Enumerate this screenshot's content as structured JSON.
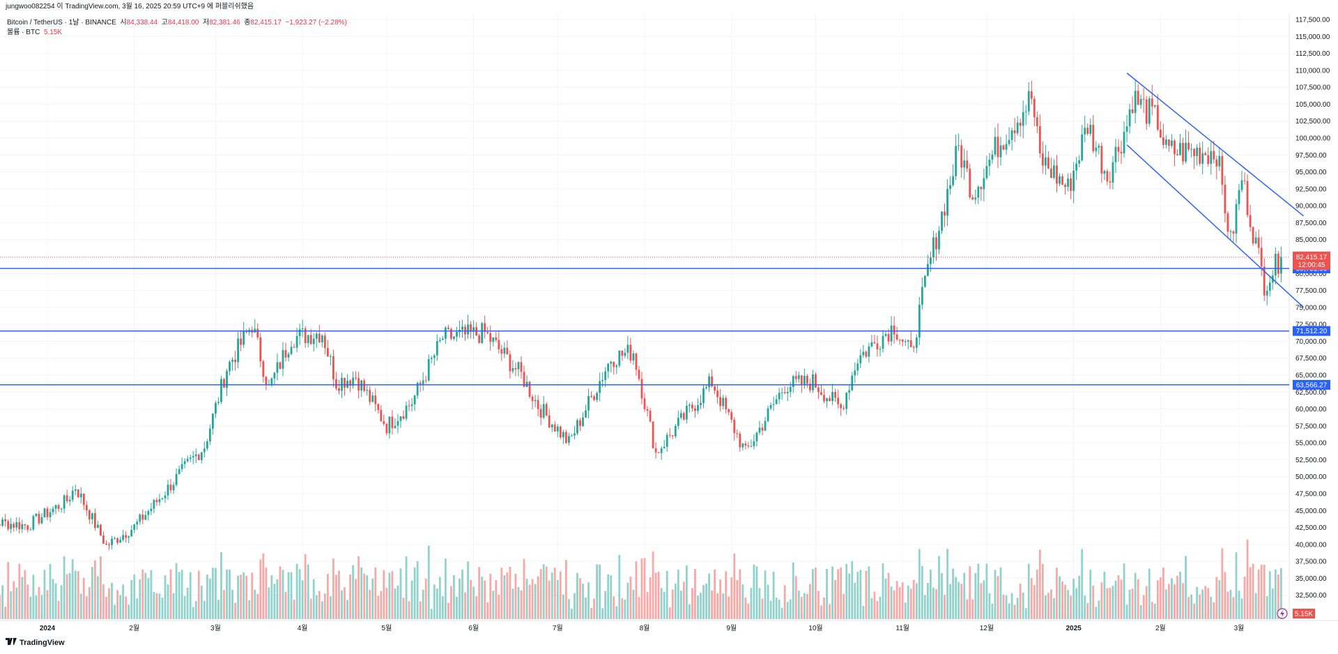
{
  "header": {
    "title": "jungwoo082254 이 TradingView.com, 3월 16, 2025 20:59 UTC+9 에 퍼블리쉬했음"
  },
  "legend": {
    "symbol": "Bitcoin / TetherUS · 1날 · BINANCE",
    "open_label": "시",
    "open_value": "84,338.44",
    "high_label": "고",
    "high_value": "84,418.00",
    "low_label": "저",
    "low_value": "82,381.46",
    "close_label": "종",
    "close_value": "82,415.17",
    "change": "−1,923.27 (−2.28%)",
    "volume_label": "볼륨 · BTC",
    "volume_value": "5.15K"
  },
  "footer": {
    "brand": "TradingView"
  },
  "colors": {
    "up": "#26a69a",
    "down": "#ef5350",
    "line": "#2962ff",
    "upvol": "#92d2cc",
    "downvol": "#f7a9a7"
  },
  "chart_data": {
    "type": "candlestick",
    "ylim": [
      30000,
      117500
    ],
    "y_ticks": [
      "117,500.00",
      "115,000.00",
      "112,500.00",
      "110,000.00",
      "107,500.00",
      "105,000.00",
      "102,500.00",
      "100,000.00",
      "97,500.00",
      "95,000.00",
      "92,500.00",
      "90,000.00",
      "87,500.00",
      "85,000.00",
      "82,500.00",
      "80,000.00",
      "77,500.00",
      "75,000.00",
      "72,500.00",
      "70,000.00",
      "67,500.00",
      "65,000.00",
      "62,500.00",
      "60,000.00",
      "57,500.00",
      "55,000.00",
      "52,500.00",
      "50,000.00",
      "47,500.00",
      "45,000.00",
      "42,500.00",
      "40,000.00",
      "37,500.00",
      "35,000.00",
      "32,500.00"
    ],
    "x_ticks": [
      {
        "label": "2024",
        "bold": true,
        "date": "2024-01-01"
      },
      {
        "label": "2월",
        "bold": false,
        "date": "2024-02-01"
      },
      {
        "label": "3월",
        "bold": false,
        "date": "2024-03-01"
      },
      {
        "label": "4월",
        "bold": false,
        "date": "2024-04-01"
      },
      {
        "label": "5월",
        "bold": false,
        "date": "2024-05-01"
      },
      {
        "label": "6월",
        "bold": false,
        "date": "2024-06-01"
      },
      {
        "label": "7월",
        "bold": false,
        "date": "2024-07-01"
      },
      {
        "label": "8월",
        "bold": false,
        "date": "2024-08-01"
      },
      {
        "label": "9월",
        "bold": false,
        "date": "2024-09-01"
      },
      {
        "label": "10월",
        "bold": false,
        "date": "2024-10-01"
      },
      {
        "label": "11월",
        "bold": false,
        "date": "2024-11-01"
      },
      {
        "label": "12월",
        "bold": false,
        "date": "2024-12-01"
      },
      {
        "label": "2025",
        "bold": true,
        "date": "2025-01-01"
      },
      {
        "label": "2월",
        "bold": false,
        "date": "2025-02-01"
      },
      {
        "label": "3월",
        "bold": false,
        "date": "2025-03-01"
      }
    ],
    "anchors": [
      [
        "2023-12-05",
        42500
      ],
      [
        "2023-12-15",
        43200
      ],
      [
        "2023-12-25",
        42800
      ],
      [
        "2024-01-08",
        46500
      ],
      [
        "2024-01-11",
        48500
      ],
      [
        "2024-01-22",
        39800
      ],
      [
        "2024-02-01",
        42600
      ],
      [
        "2024-02-10",
        46800
      ],
      [
        "2024-02-20",
        51800
      ],
      [
        "2024-02-26",
        54500
      ],
      [
        "2024-03-05",
        66000
      ],
      [
        "2024-03-14",
        72500
      ],
      [
        "2024-03-20",
        63000
      ],
      [
        "2024-03-28",
        70500
      ],
      [
        "2024-04-08",
        71300
      ],
      [
        "2024-04-13",
        64000
      ],
      [
        "2024-04-20",
        64800
      ],
      [
        "2024-05-01",
        57500
      ],
      [
        "2024-05-10",
        61000
      ],
      [
        "2024-05-21",
        70500
      ],
      [
        "2024-06-05",
        71200
      ],
      [
        "2024-06-18",
        65000
      ],
      [
        "2024-06-24",
        60500
      ],
      [
        "2024-07-05",
        55000
      ],
      [
        "2024-07-20",
        67500
      ],
      [
        "2024-07-28",
        68500
      ],
      [
        "2024-08-05",
        53500
      ],
      [
        "2024-08-25",
        64000
      ],
      [
        "2024-09-06",
        53500
      ],
      [
        "2024-09-20",
        63500
      ],
      [
        "2024-09-30",
        64000
      ],
      [
        "2024-10-10",
        60000
      ],
      [
        "2024-10-16",
        67500
      ],
      [
        "2024-10-29",
        72300
      ],
      [
        "2024-11-04",
        68000
      ],
      [
        "2024-11-10",
        80500
      ],
      [
        "2024-11-21",
        98500
      ],
      [
        "2024-11-26",
        92000
      ],
      [
        "2024-12-05",
        99000
      ],
      [
        "2024-12-17",
        106000
      ],
      [
        "2024-12-20",
        97000
      ],
      [
        "2024-12-30",
        92500
      ],
      [
        "2025-01-06",
        102000
      ],
      [
        "2025-01-13",
        94500
      ],
      [
        "2025-01-20",
        102000
      ],
      [
        "2025-01-22",
        106000
      ],
      [
        "2025-01-31",
        102500
      ],
      [
        "2025-02-03",
        98000
      ],
      [
        "2025-02-21",
        98000
      ],
      [
        "2025-02-26",
        84500
      ],
      [
        "2025-03-02",
        94200
      ],
      [
        "2025-03-10",
        78500
      ],
      [
        "2025-03-16",
        82415
      ]
    ],
    "hlines": [
      {
        "value": 80751.66,
        "label": "80,751.66"
      },
      {
        "value": 71512.2,
        "label": "71,512.20"
      },
      {
        "value": 63566.27,
        "label": "63,566.27"
      }
    ],
    "trendlines": [
      {
        "from": [
          "2025-01-20",
          109600
        ],
        "to": [
          "2025-03-24",
          88500
        ]
      },
      {
        "from": [
          "2025-01-20",
          99000
        ],
        "to": [
          "2025-03-24",
          75000
        ]
      }
    ],
    "last_price": {
      "value": 82415.17,
      "label": "82,415.17",
      "countdown": "12:00:45"
    },
    "volume_tag": "5.15K"
  }
}
